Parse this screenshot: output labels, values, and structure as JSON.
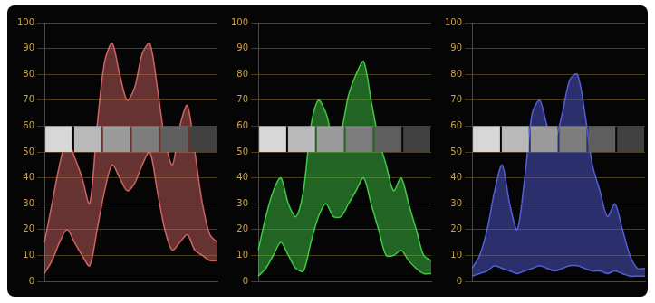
{
  "chart_data": [
    {
      "type": "line",
      "color": "#e06a6a",
      "categories": [
        null,
        null,
        null,
        null,
        null,
        null,
        null,
        null,
        null,
        null,
        null,
        null,
        null,
        null,
        null,
        null,
        null,
        null,
        null,
        null,
        null,
        null,
        null,
        null
      ],
      "series": [
        {
          "color": "#e06a6a",
          "values": [
            15,
            30,
            45,
            55,
            48,
            40,
            30,
            60,
            85,
            92,
            80,
            70,
            75,
            88,
            92,
            75,
            55,
            45,
            60,
            68,
            50,
            30,
            18,
            15
          ]
        },
        {
          "color": "#e06a6a",
          "values": [
            3,
            8,
            15,
            20,
            15,
            10,
            6,
            20,
            35,
            45,
            40,
            35,
            38,
            45,
            50,
            35,
            20,
            12,
            15,
            18,
            12,
            10,
            8,
            8
          ]
        }
      ],
      "ylim": [
        0,
        100
      ],
      "yticks": [
        0,
        10,
        20,
        30,
        40,
        50,
        60,
        70,
        80,
        90,
        100
      ],
      "grid": true,
      "tick_labels": "y"
    },
    {
      "type": "line",
      "color": "#45d94a",
      "categories": [
        null,
        null,
        null,
        null,
        null,
        null,
        null,
        null,
        null,
        null,
        null,
        null,
        null,
        null,
        null,
        null,
        null,
        null,
        null,
        null,
        null,
        null,
        null,
        null
      ],
      "series": [
        {
          "color": "#45d94a",
          "values": [
            12,
            25,
            35,
            40,
            30,
            25,
            35,
            60,
            70,
            65,
            55,
            58,
            72,
            80,
            85,
            70,
            55,
            45,
            35,
            40,
            30,
            20,
            10,
            8
          ]
        },
        {
          "color": "#45d94a",
          "values": [
            2,
            5,
            10,
            15,
            10,
            5,
            4,
            15,
            25,
            30,
            25,
            25,
            30,
            35,
            40,
            30,
            20,
            10,
            10,
            12,
            8,
            5,
            3,
            3
          ]
        }
      ],
      "ylim": [
        0,
        100
      ],
      "yticks": [
        0,
        10,
        20,
        30,
        40,
        50,
        60,
        70,
        80,
        90,
        100
      ],
      "grid": true,
      "tick_labels": "y"
    },
    {
      "type": "line",
      "color": "#5a66ea",
      "categories": [
        null,
        null,
        null,
        null,
        null,
        null,
        null,
        null,
        null,
        null,
        null,
        null,
        null,
        null,
        null,
        null,
        null,
        null,
        null,
        null,
        null,
        null,
        null,
        null
      ],
      "series": [
        {
          "color": "#5a66ea",
          "values": [
            5,
            10,
            20,
            35,
            45,
            30,
            20,
            40,
            65,
            70,
            60,
            55,
            65,
            78,
            80,
            65,
            45,
            35,
            25,
            30,
            20,
            10,
            5,
            5
          ]
        },
        {
          "color": "#5a66ea",
          "values": [
            2,
            3,
            4,
            6,
            5,
            4,
            3,
            4,
            5,
            6,
            5,
            4,
            5,
            6,
            6,
            5,
            4,
            4,
            3,
            4,
            3,
            2,
            2,
            2
          ]
        }
      ],
      "ylim": [
        0,
        100
      ],
      "yticks": [
        0,
        10,
        20,
        30,
        40,
        50,
        60,
        70,
        80,
        90,
        100
      ],
      "grid": true,
      "tick_labels": "y"
    }
  ]
}
